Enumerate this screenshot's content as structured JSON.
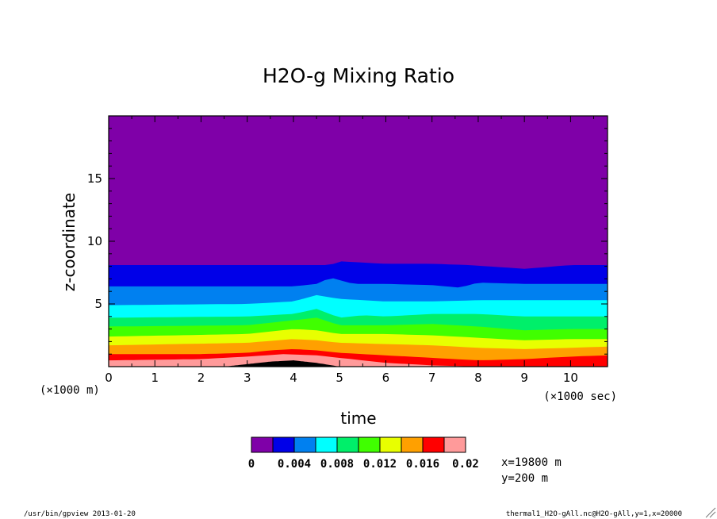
{
  "chart_data": {
    "type": "contour",
    "title": "H2O-g Mixing Ratio",
    "xlabel": "time",
    "ylabel": "z-coordinate",
    "x_unit": "(×1000 sec)",
    "y_unit": "(×1000 m)",
    "xlim": [
      0,
      10.8
    ],
    "ylim": [
      0,
      20
    ],
    "x_ticks": [
      "0",
      "1",
      "2",
      "3",
      "4",
      "5",
      "6",
      "7",
      "8",
      "9",
      "10"
    ],
    "y_ticks": [
      "5",
      "10",
      "15"
    ],
    "levels": [
      0,
      0.002,
      0.004,
      0.006,
      0.008,
      0.01,
      0.012,
      0.014,
      0.016,
      0.018,
      0.02
    ],
    "colors": [
      "#7f00a8",
      "#0000e8",
      "#0080f0",
      "#00ffff",
      "#00ef6a",
      "#40ff00",
      "#e8ff00",
      "#ffa000",
      "#ff0000",
      "#ff9a9a"
    ],
    "colorbar_labels": [
      "0",
      "0.004",
      "0.008",
      "0.012",
      "0.016",
      "0.02"
    ],
    "contours": [
      {
        "level": 0.002,
        "x": [
          0,
          4,
          4.8,
          5,
          6,
          7,
          7.8,
          9,
          10,
          10.8
        ],
        "y": [
          8.1,
          8.1,
          8.1,
          8.4,
          8.2,
          8.2,
          8.1,
          7.8,
          8.1,
          8.1
        ]
      },
      {
        "level": 0.004,
        "x": [
          0,
          4,
          4.5,
          4.8,
          5.3,
          6,
          7,
          7.6,
          8,
          9,
          10,
          10.8
        ],
        "y": [
          6.4,
          6.4,
          6.6,
          7.1,
          6.6,
          6.6,
          6.5,
          6.3,
          6.7,
          6.6,
          6.6,
          6.6
        ]
      },
      {
        "level": 0.006,
        "x": [
          0,
          3,
          4,
          4.5,
          5,
          6,
          7,
          8,
          9,
          10,
          10.8
        ],
        "y": [
          4.9,
          5.0,
          5.2,
          5.7,
          5.4,
          5.2,
          5.2,
          5.3,
          5.3,
          5.3,
          5.3
        ]
      },
      {
        "level": 0.008,
        "x": [
          0,
          3,
          4,
          4.5,
          5,
          5.5,
          6,
          7,
          8,
          9,
          10,
          10.8
        ],
        "y": [
          3.9,
          4.0,
          4.2,
          4.6,
          3.9,
          4.1,
          4.0,
          4.2,
          4.2,
          4.0,
          4.0,
          4.0
        ]
      },
      {
        "level": 0.01,
        "x": [
          0,
          3,
          4,
          4.5,
          5,
          6,
          7,
          8,
          9,
          10,
          10.8
        ],
        "y": [
          3.2,
          3.3,
          3.7,
          3.9,
          3.3,
          3.3,
          3.4,
          3.2,
          2.9,
          3.0,
          3.0
        ]
      },
      {
        "level": 0.012,
        "x": [
          0,
          3,
          4,
          4.5,
          5,
          6,
          7,
          8,
          9,
          10,
          10.8
        ],
        "y": [
          2.4,
          2.6,
          3.0,
          2.9,
          2.6,
          2.6,
          2.5,
          2.3,
          2.1,
          2.2,
          2.2
        ]
      },
      {
        "level": 0.014,
        "x": [
          0,
          3,
          4,
          4.5,
          5,
          6,
          7,
          8,
          9,
          10,
          10.8
        ],
        "y": [
          1.7,
          1.9,
          2.2,
          2.1,
          1.9,
          1.8,
          1.7,
          1.5,
          1.4,
          1.5,
          1.6
        ]
      },
      {
        "level": 0.016,
        "x": [
          0,
          2,
          3,
          3.5,
          4,
          4.5,
          5,
          6,
          7,
          8,
          9,
          10,
          10.8
        ],
        "y": [
          1.0,
          1.0,
          1.1,
          1.3,
          1.4,
          1.3,
          1.1,
          0.9,
          0.7,
          0.5,
          0.6,
          0.8,
          0.9
        ]
      },
      {
        "level": 0.018,
        "x": [
          0,
          2,
          3,
          3.8,
          4.5,
          5,
          6,
          7,
          8,
          9,
          10,
          10.8
        ],
        "y": [
          0.5,
          0.6,
          0.8,
          1.0,
          0.9,
          0.7,
          0.3,
          0.1,
          0,
          0,
          0,
          0
        ]
      },
      {
        "level": 0.02,
        "x": [
          2.5,
          3,
          3.5,
          4,
          4.5,
          5
        ],
        "y": [
          0,
          0.2,
          0.4,
          0.5,
          0.3,
          0
        ]
      }
    ]
  },
  "annotations": {
    "coord_x": "x=19800 m",
    "coord_y": "y=200 m",
    "footer_left": "/usr/bin/gpview  2013-01-20",
    "footer_right": "thermal1_H2O-gAll.nc@H2O-gAll,y=1,x=20000"
  }
}
